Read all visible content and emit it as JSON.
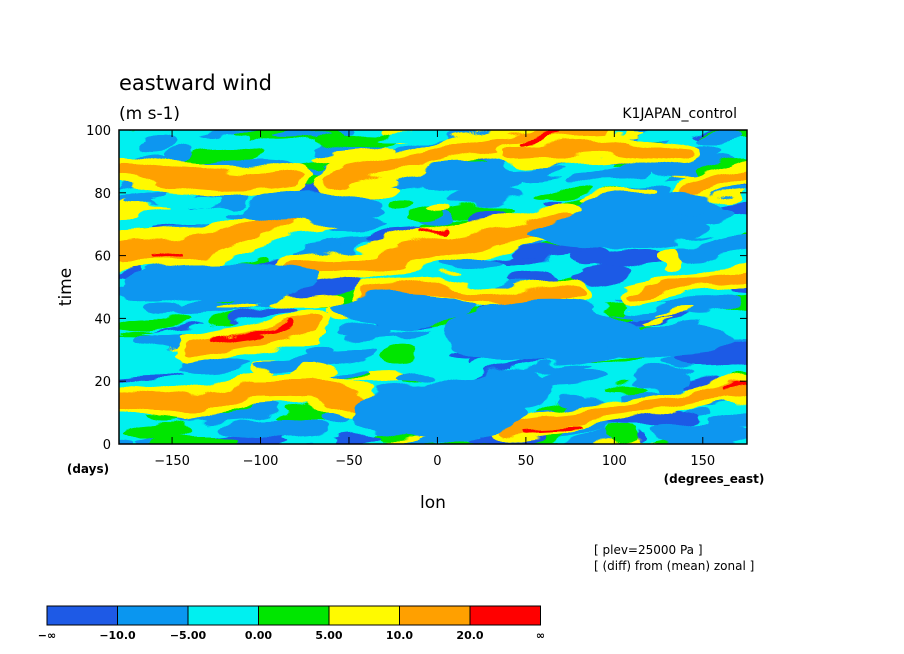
{
  "chart_data": {
    "type": "heatmap",
    "title": "eastward wind",
    "units": "(m s-1)",
    "experiment": "K1JAPAN_control",
    "xlabel": "lon",
    "ylabel": "time",
    "x_unit_label": "(degrees_east)",
    "y_unit_label": "(days)",
    "xlim": [
      -180,
      175
    ],
    "ylim": [
      0,
      100
    ],
    "x_ticks": [
      -150,
      -100,
      -50,
      0,
      50,
      100,
      150
    ],
    "y_ticks": [
      0,
      20,
      40,
      60,
      80,
      100
    ],
    "notes": [
      "[ plev=25000 Pa ]",
      "[ (diff) from (mean) zonal ]"
    ],
    "colorbar": {
      "colors": [
        "#1e5ae6",
        "#0a96f0",
        "#00f0f0",
        "#00e600",
        "#fffa00",
        "#ffa000",
        "#ff0000"
      ],
      "labels": [
        "-∞",
        "-10.0",
        "-5.00",
        "0.00",
        "5.00",
        "10.0",
        "20.0",
        "∞"
      ]
    },
    "features": [
      {
        "type": "band",
        "level": 10,
        "points": [
          [
            -180,
            61
          ],
          [
            -130,
            63
          ],
          [
            -80,
            73
          ],
          [
            -60,
            74
          ]
        ],
        "width": 6
      },
      {
        "type": "band",
        "level": 10,
        "points": [
          [
            -140,
            30
          ],
          [
            -100,
            34
          ],
          [
            -70,
            38
          ]
        ],
        "width": 5
      },
      {
        "type": "band",
        "level": 10,
        "points": [
          [
            -80,
            55
          ],
          [
            -40,
            58
          ],
          [
            0,
            63
          ],
          [
            40,
            67
          ],
          [
            70,
            72
          ]
        ],
        "width": 6
      },
      {
        "type": "band",
        "level": 10,
        "points": [
          [
            -60,
            85
          ],
          [
            -20,
            89
          ],
          [
            20,
            94
          ],
          [
            60,
            98
          ],
          [
            90,
            100
          ]
        ],
        "width": 5
      },
      {
        "type": "band",
        "level": 10,
        "points": [
          [
            -180,
            88
          ],
          [
            -150,
            85
          ],
          [
            -110,
            83
          ],
          [
            -80,
            85
          ]
        ],
        "width": 5
      },
      {
        "type": "band",
        "level": 10,
        "points": [
          [
            -180,
            15
          ],
          [
            -140,
            12
          ],
          [
            -110,
            17
          ],
          [
            -70,
            18
          ],
          [
            -40,
            12
          ]
        ],
        "width": 5
      },
      {
        "type": "band",
        "level": 10,
        "points": [
          [
            40,
            5
          ],
          [
            80,
            8
          ],
          [
            120,
            12
          ],
          [
            175,
            18
          ]
        ],
        "width": 4
      },
      {
        "type": "band",
        "level": 10,
        "points": [
          [
            110,
            48
          ],
          [
            140,
            52
          ],
          [
            175,
            54
          ]
        ],
        "width": 4
      },
      {
        "type": "band",
        "level": 10,
        "points": [
          [
            -40,
            48
          ],
          [
            0,
            50
          ],
          [
            40,
            45
          ],
          [
            80,
            48
          ]
        ],
        "width": 4
      },
      {
        "type": "band",
        "level": 10,
        "points": [
          [
            140,
            80
          ],
          [
            175,
            86
          ]
        ],
        "width": 4
      },
      {
        "type": "band",
        "level": 10,
        "points": [
          [
            40,
            93
          ],
          [
            100,
            95
          ],
          [
            140,
            92
          ]
        ],
        "width": 4
      },
      {
        "type": "band",
        "level": 20,
        "points": [
          [
            -130,
            33
          ],
          [
            -90,
            36
          ],
          [
            -80,
            38
          ]
        ],
        "width": 1.3
      },
      {
        "type": "band",
        "level": 20,
        "points": [
          [
            45,
            96
          ],
          [
            60,
            98
          ],
          [
            70,
            99
          ]
        ],
        "width": 1.5
      },
      {
        "type": "band",
        "level": 20,
        "points": [
          [
            50,
            4
          ],
          [
            80,
            5
          ]
        ],
        "width": 1.2
      },
      {
        "type": "band",
        "level": 20,
        "points": [
          [
            -160,
            60
          ],
          [
            -145,
            61
          ]
        ],
        "width": 1.0
      },
      {
        "type": "band",
        "level": 20,
        "points": [
          [
            -10,
            67
          ],
          [
            5,
            68
          ]
        ],
        "width": 0.8
      },
      {
        "type": "band",
        "level": 20,
        "points": [
          [
            165,
            18
          ],
          [
            175,
            19
          ]
        ],
        "width": 1.0
      },
      {
        "type": "blob",
        "level": -10,
        "x": 0,
        "y": 10,
        "rx": 50,
        "ry": 8
      },
      {
        "type": "blob",
        "level": -10,
        "x": 30,
        "y": 17,
        "rx": 35,
        "ry": 6
      },
      {
        "type": "blob",
        "level": -10,
        "x": 60,
        "y": 35,
        "rx": 55,
        "ry": 10
      },
      {
        "type": "blob",
        "level": -10,
        "x": -70,
        "y": 75,
        "rx": 40,
        "ry": 6
      },
      {
        "type": "blob",
        "level": -10,
        "x": -120,
        "y": 52,
        "rx": 55,
        "ry": 6
      },
      {
        "type": "blob",
        "level": -10,
        "x": 100,
        "y": 68,
        "rx": 50,
        "ry": 6
      },
      {
        "type": "blob",
        "level": -10,
        "x": 150,
        "y": 3,
        "rx": 30,
        "ry": 4
      },
      {
        "type": "blob",
        "level": -10,
        "x": -20,
        "y": 43,
        "rx": 40,
        "ry": 5
      },
      {
        "type": "blob",
        "level": -10,
        "x": 120,
        "y": 75,
        "rx": 40,
        "ry": 5
      },
      {
        "type": "blob",
        "level": -10,
        "x": -90,
        "y": 5,
        "rx": 30,
        "ry": 3
      },
      {
        "type": "blob",
        "level": -10,
        "x": 20,
        "y": 85,
        "rx": 30,
        "ry": 4
      },
      {
        "type": "blob",
        "level": -10,
        "x": 130,
        "y": 32,
        "rx": 40,
        "ry": 5
      }
    ]
  }
}
